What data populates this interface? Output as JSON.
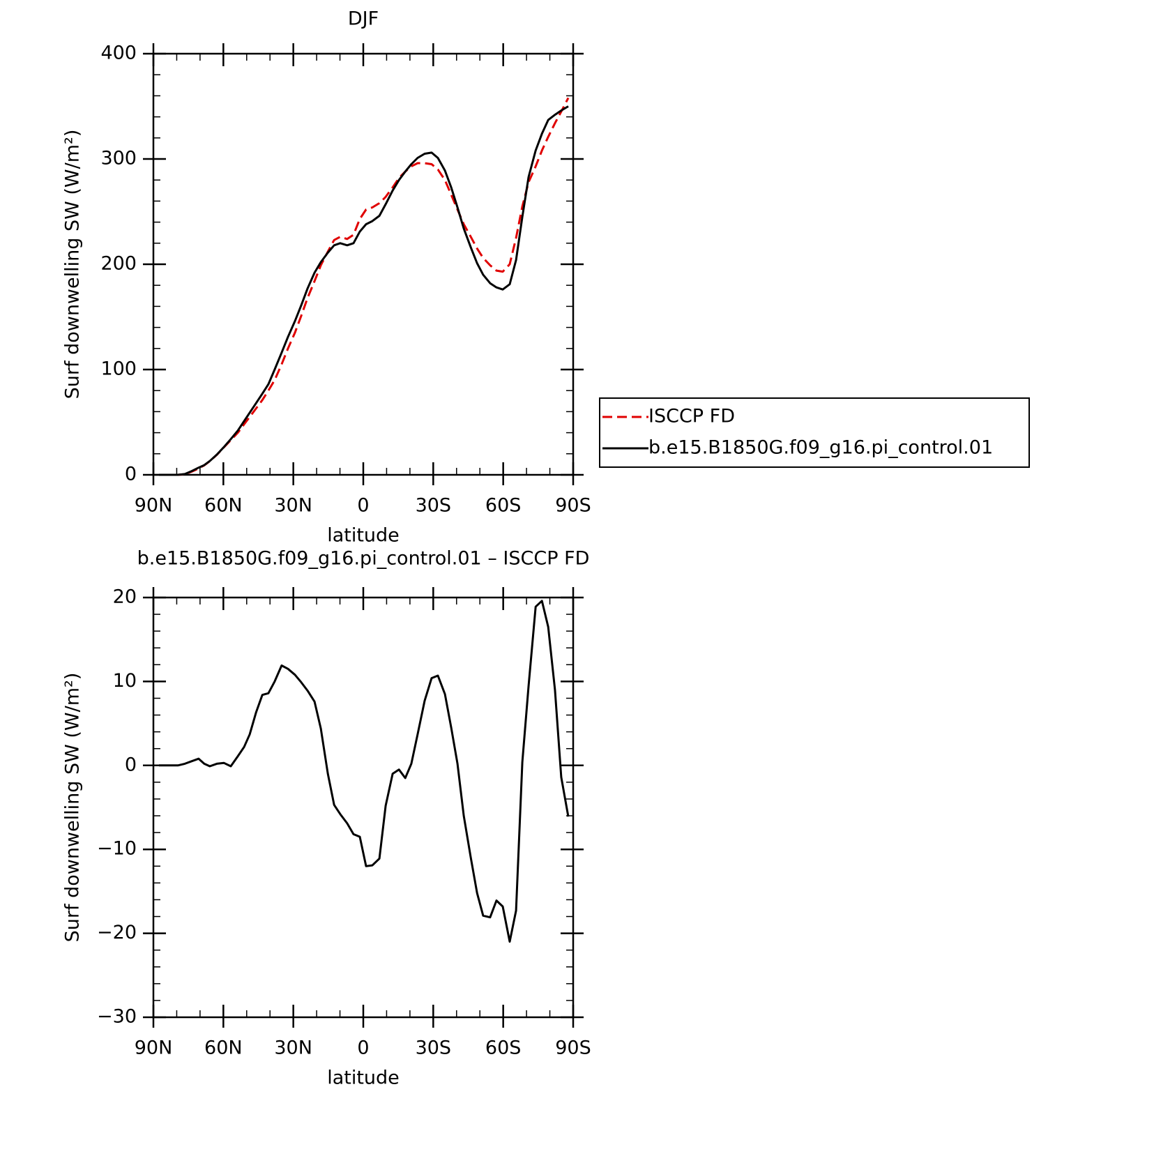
{
  "chart_data": [
    {
      "type": "line",
      "title": "DJF",
      "xlabel": "latitude",
      "ylabel": "Surf downwelling SW (W/m²)",
      "xlim": [
        90,
        -90
      ],
      "ylim": [
        0,
        400
      ],
      "xticks": [
        {
          "value": 90,
          "label": "90N"
        },
        {
          "value": 60,
          "label": "60N"
        },
        {
          "value": 30,
          "label": "30N"
        },
        0,
        {
          "value": -30,
          "label": "30S"
        },
        {
          "value": -60,
          "label": "60S"
        },
        {
          "value": -90,
          "label": "90S"
        }
      ],
      "yticks": [
        0,
        100,
        200,
        300,
        400
      ],
      "legend": "right",
      "x": [
        87.6,
        84.9,
        82.2,
        79.5,
        76.5,
        73.6,
        70.6,
        68.2,
        65.8,
        62.8,
        59.8,
        56.8,
        53.8,
        51.1,
        48.7,
        46.0,
        43.3,
        40.7,
        38.0,
        35.0,
        32.3,
        29.3,
        26.6,
        23.9,
        20.9,
        18.2,
        15.2,
        12.5,
        9.9,
        6.9,
        4.2,
        1.5,
        -1.2,
        -3.9,
        -6.9,
        -9.6,
        -12.6,
        -15.3,
        -18.0,
        -20.6,
        -23.3,
        -26.3,
        -29.3,
        -32.0,
        -35.0,
        -37.7,
        -40.4,
        -43.1,
        -46.1,
        -48.8,
        -51.4,
        -54.4,
        -57.1,
        -59.8,
        -62.8,
        -65.5,
        -68.2,
        -70.9,
        -73.9,
        -76.6,
        -79.3,
        -82.2,
        -84.9,
        -87.9
      ],
      "series": [
        {
          "name": "ISCCP FD",
          "color": "#e00000",
          "linestyle": "dashed",
          "values": [
            0,
            0,
            0,
            0,
            0.5,
            3,
            6,
            9,
            13,
            19,
            26,
            33,
            40,
            48,
            55,
            63,
            71,
            80,
            90,
            105,
            120,
            135,
            151,
            168,
            184,
            199,
            212,
            223,
            226,
            224,
            228,
            243,
            252,
            254,
            258,
            264,
            273,
            282,
            288,
            293,
            296,
            296,
            295,
            290,
            280,
            266,
            252,
            238,
            226,
            215,
            206,
            199,
            194,
            193,
            200,
            225,
            255,
            278,
            293,
            308,
            321,
            334,
            345,
            358
          ]
        },
        {
          "name": "b.e15.B1850G.f09_g16.pi_control.01",
          "color": "#000000",
          "linestyle": "solid",
          "values": [
            0,
            0,
            0,
            0,
            0.7,
            3.5,
            6.8,
            9.2,
            13.1,
            19.2,
            26.3,
            33.9,
            42,
            51,
            59,
            68,
            77,
            86,
            100,
            116,
            131,
            146,
            161,
            177,
            192,
            202,
            211,
            218,
            220,
            218,
            220,
            231,
            238,
            241,
            246,
            257,
            270,
            280,
            288,
            295,
            301,
            305,
            306,
            301,
            289,
            273,
            254,
            234,
            216,
            201,
            190,
            182,
            178,
            176,
            181,
            204,
            245,
            283,
            308,
            324,
            337,
            342,
            346,
            350
          ]
        }
      ]
    },
    {
      "type": "line",
      "title": "b.e15.B1850G.f09_g16.pi_control.01 – ISCCP FD",
      "xlabel": "latitude",
      "ylabel": "Surf downwelling SW (W/m²)",
      "xlim": [
        90,
        -90
      ],
      "ylim": [
        -30,
        20
      ],
      "xticks": [
        {
          "value": 90,
          "label": "90N"
        },
        {
          "value": 60,
          "label": "60N"
        },
        {
          "value": 30,
          "label": "30N"
        },
        0,
        {
          "value": -30,
          "label": "30S"
        },
        {
          "value": -60,
          "label": "60S"
        },
        {
          "value": -90,
          "label": "90S"
        }
      ],
      "yticks": [
        {
          "value": -30,
          "label": "−30"
        },
        {
          "value": -20,
          "label": "−20"
        },
        {
          "value": -10,
          "label": "−10"
        },
        0,
        10,
        20
      ],
      "x": [
        87.6,
        84.9,
        82.2,
        79.5,
        76.5,
        73.6,
        70.6,
        68.2,
        65.8,
        62.8,
        59.8,
        56.8,
        53.8,
        51.1,
        48.7,
        46.0,
        43.3,
        40.7,
        38.0,
        35.0,
        32.3,
        29.3,
        26.6,
        23.9,
        20.9,
        18.2,
        15.2,
        12.5,
        9.9,
        6.9,
        4.2,
        1.5,
        -1.2,
        -3.9,
        -6.9,
        -9.6,
        -12.6,
        -15.3,
        -18.0,
        -20.6,
        -23.3,
        -26.3,
        -29.3,
        -32.0,
        -35.0,
        -37.7,
        -40.4,
        -43.1,
        -46.1,
        -48.8,
        -51.4,
        -54.4,
        -57.1,
        -59.8,
        -62.8,
        -65.5,
        -68.2,
        -70.9,
        -73.9,
        -76.6,
        -79.3,
        -82.2,
        -84.9,
        -87.9
      ],
      "series": [
        {
          "color": "#000000",
          "linestyle": "solid",
          "values": [
            0,
            0,
            0,
            0,
            0.2,
            0.5,
            0.8,
            0.2,
            -0.1,
            0.2,
            0.3,
            -0.1,
            1.1,
            2.2,
            3.7,
            6.3,
            8.4,
            8.6,
            10.0,
            11.9,
            11.5,
            10.8,
            9.9,
            8.9,
            7.6,
            4.4,
            -1.0,
            -4.7,
            -5.8,
            -6.9,
            -8.2,
            -8.5,
            -12.0,
            -11.9,
            -11.1,
            -4.8,
            -1.0,
            -0.5,
            -1.5,
            0.2,
            3.7,
            7.7,
            10.4,
            10.7,
            8.5,
            4.5,
            0.2,
            -6.0,
            -11.0,
            -15.2,
            -17.9,
            -18.1,
            -16.1,
            -16.8,
            -21.0,
            -17.3,
            0.4,
            9.5,
            18.9,
            19.6,
            16.5,
            9.0,
            -1.4,
            -6.1
          ]
        }
      ]
    }
  ]
}
